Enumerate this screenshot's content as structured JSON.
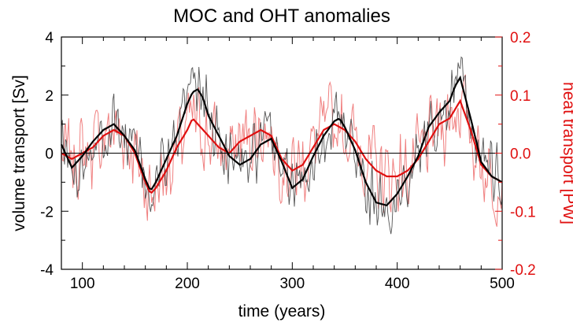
{
  "chart_data": {
    "type": "line",
    "title": "MOC and OHT anomalies",
    "xlabel": "time (years)",
    "ylabel_left": "volume transport [Sv]",
    "ylabel_right": "heat transport [PW]",
    "xlim": [
      80,
      500
    ],
    "ylim_left": [
      -4,
      4
    ],
    "ylim_right": [
      -0.2,
      0.2
    ],
    "x_ticks": [
      100,
      200,
      300,
      400,
      500
    ],
    "y_ticks_left": [
      -4,
      -2,
      0,
      2,
      4
    ],
    "y_ticks_right": [
      "-0.2",
      "-0.1",
      "0.0",
      "0.1",
      "0.2"
    ],
    "zero_line": true,
    "grid": false,
    "colors": {
      "moc": "#000000",
      "oht": "#e01010",
      "axis": "#000000"
    },
    "series": [
      {
        "key": "moc_smooth",
        "axis": "left",
        "x": [
          80,
          90,
          100,
          110,
          120,
          130,
          140,
          150,
          160,
          165,
          170,
          180,
          190,
          200,
          205,
          210,
          215,
          220,
          230,
          240,
          250,
          260,
          270,
          280,
          290,
          300,
          310,
          320,
          330,
          340,
          345,
          350,
          360,
          370,
          380,
          390,
          400,
          410,
          420,
          430,
          440,
          450,
          455,
          460,
          470,
          480,
          490,
          500
        ],
        "y": [
          0.3,
          -0.5,
          -0.1,
          0.4,
          0.8,
          1.0,
          0.6,
          0.1,
          -0.9,
          -1.3,
          -1.0,
          -0.2,
          0.6,
          1.7,
          2.1,
          2.2,
          1.9,
          1.3,
          0.6,
          -0.1,
          -0.4,
          -0.2,
          0.3,
          0.5,
          -0.3,
          -1.2,
          -0.9,
          -0.1,
          0.6,
          1.1,
          1.2,
          0.9,
          0.1,
          -1.0,
          -1.7,
          -1.8,
          -1.4,
          -0.8,
          -0.1,
          0.9,
          1.4,
          1.8,
          2.3,
          2.6,
          1.2,
          -0.3,
          -0.8,
          -1.0
        ]
      },
      {
        "key": "oht_smooth",
        "axis": "right",
        "x": [
          80,
          90,
          100,
          110,
          120,
          130,
          140,
          150,
          160,
          165,
          170,
          180,
          190,
          200,
          205,
          210,
          215,
          220,
          230,
          240,
          250,
          260,
          270,
          280,
          290,
          300,
          310,
          320,
          330,
          340,
          350,
          360,
          370,
          380,
          390,
          400,
          410,
          420,
          430,
          440,
          450,
          460,
          470,
          480,
          490,
          500
        ],
        "y": [
          0.0,
          -0.01,
          0.0,
          0.01,
          0.03,
          0.04,
          0.03,
          0.0,
          -0.05,
          -0.07,
          -0.06,
          -0.03,
          0.01,
          0.04,
          0.06,
          0.05,
          0.04,
          0.03,
          0.01,
          0.0,
          0.02,
          0.03,
          0.04,
          0.03,
          -0.01,
          -0.03,
          -0.02,
          0.01,
          0.04,
          0.05,
          0.04,
          0.02,
          -0.01,
          -0.03,
          -0.04,
          -0.04,
          -0.03,
          -0.01,
          0.02,
          0.05,
          0.06,
          0.09,
          0.04,
          -0.02,
          -0.04,
          -0.05
        ]
      }
    ]
  }
}
